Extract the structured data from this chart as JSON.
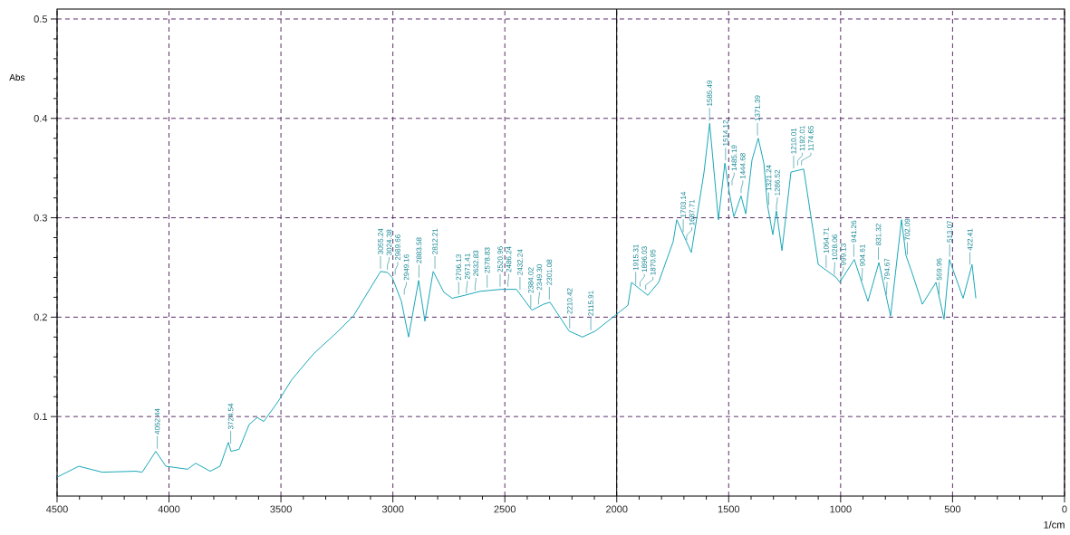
{
  "chart_data": {
    "type": "line",
    "xlabel": "1/cm",
    "ylabel": "Abs",
    "x": [
      4500,
      4403,
      4298,
      4148,
      4120,
      4059,
      4014,
      3917,
      3881,
      3816,
      3772,
      3735,
      3723,
      3687,
      3642,
      3606,
      3577,
      3513,
      3452,
      3355,
      3258,
      3177,
      3055,
      3024,
      3003,
      2962,
      2930,
      2885,
      2857,
      2820,
      2772,
      2735,
      2679,
      2610,
      2517,
      2448,
      2379,
      2327,
      2298,
      2213,
      2153,
      2096,
      2011,
      1950,
      1934,
      1861,
      1813,
      1748,
      1732,
      1667,
      1610,
      1585,
      1546,
      1517,
      1497,
      1477,
      1445,
      1424,
      1396,
      1368,
      1343,
      1327,
      1303,
      1287,
      1262,
      1222,
      1165,
      1100,
      1020,
      1004,
      939,
      878,
      829,
      777,
      728,
      708,
      680,
      635,
      574,
      538,
      514,
      453,
      413,
      396
    ],
    "series": [
      {
        "color": "#1aa8b8",
        "values": [
          0.039,
          0.05,
          0.044,
          0.045,
          0.044,
          0.065,
          0.05,
          0.047,
          0.053,
          0.045,
          0.05,
          0.074,
          0.065,
          0.067,
          0.092,
          0.099,
          0.095,
          0.115,
          0.137,
          0.163,
          0.183,
          0.201,
          0.246,
          0.245,
          0.24,
          0.216,
          0.18,
          0.237,
          0.196,
          0.246,
          0.225,
          0.219,
          0.222,
          0.226,
          0.228,
          0.228,
          0.207,
          0.213,
          0.215,
          0.186,
          0.18,
          0.186,
          0.201,
          0.212,
          0.235,
          0.222,
          0.235,
          0.276,
          0.298,
          0.265,
          0.346,
          0.395,
          0.298,
          0.355,
          0.325,
          0.301,
          0.322,
          0.304,
          0.358,
          0.38,
          0.355,
          0.313,
          0.283,
          0.307,
          0.267,
          0.346,
          0.349,
          0.253,
          0.24,
          0.235,
          0.258,
          0.216,
          0.255,
          0.201,
          0.298,
          0.262,
          0.244,
          0.213,
          0.235,
          0.198,
          0.258,
          0.219,
          0.253,
          0.219
        ]
      }
    ],
    "xlim": [
      4500,
      0
    ],
    "ylim": [
      0.02,
      0.51
    ],
    "xticks": [
      4500,
      4000,
      3500,
      3000,
      2500,
      2000,
      1500,
      1000,
      500,
      0
    ],
    "yticks": [
      0.1,
      0.2,
      0.3,
      0.4,
      0.5
    ],
    "grid": true,
    "marker": "none",
    "line_style": "solid",
    "ref_lines": [
      {
        "axis": "x",
        "value": 2000,
        "color": "#000000"
      }
    ],
    "annotations": [
      {
        "text": "4052.44",
        "x": 4052.44,
        "y": 0.065
      },
      {
        "text": "3724.54",
        "x": 3724.54,
        "y": 0.07
      },
      {
        "text": "3055.24",
        "x": 3055.24,
        "y": 0.246
      },
      {
        "text": "3024.38",
        "x": 3024.38,
        "y": 0.245
      },
      {
        "text": "2989.66",
        "x": 2989.66,
        "y": 0.24
      },
      {
        "text": "2949.16",
        "x": 2949.16,
        "y": 0.22
      },
      {
        "text": "2883.58",
        "x": 2883.58,
        "y": 0.237
      },
      {
        "text": "2812.21",
        "x": 2812.21,
        "y": 0.246
      },
      {
        "text": "2706.13",
        "x": 2706.13,
        "y": 0.22
      },
      {
        "text": "2671.41",
        "x": 2671.41,
        "y": 0.221
      },
      {
        "text": "2632.83",
        "x": 2632.83,
        "y": 0.224
      },
      {
        "text": "2578.83",
        "x": 2578.83,
        "y": 0.227
      },
      {
        "text": "2520.96",
        "x": 2520.96,
        "y": 0.228
      },
      {
        "text": "2486.24",
        "x": 2486.24,
        "y": 0.228
      },
      {
        "text": "2432.24",
        "x": 2432.24,
        "y": 0.225
      },
      {
        "text": "2384.02",
        "x": 2384.02,
        "y": 0.207
      },
      {
        "text": "2349.30",
        "x": 2349.3,
        "y": 0.21
      },
      {
        "text": "2301.08",
        "x": 2301.08,
        "y": 0.215
      },
      {
        "text": "2210.42",
        "x": 2210.42,
        "y": 0.186
      },
      {
        "text": "2115.91",
        "x": 2115.91,
        "y": 0.184
      },
      {
        "text": "1915.31",
        "x": 1915.31,
        "y": 0.23
      },
      {
        "text": "1896.03",
        "x": 1896.03,
        "y": 0.228
      },
      {
        "text": "1870.95",
        "x": 1870.95,
        "y": 0.225
      },
      {
        "text": "1703.14",
        "x": 1703.14,
        "y": 0.283
      },
      {
        "text": "1687.71",
        "x": 1687.71,
        "y": 0.275
      },
      {
        "text": "1585.49",
        "x": 1585.49,
        "y": 0.395
      },
      {
        "text": "1514.12",
        "x": 1514.12,
        "y": 0.355
      },
      {
        "text": "1485.19",
        "x": 1485.19,
        "y": 0.33
      },
      {
        "text": "1444.68",
        "x": 1444.68,
        "y": 0.322
      },
      {
        "text": "1371.39",
        "x": 1371.39,
        "y": 0.38
      },
      {
        "text": "1321.24",
        "x": 1321.24,
        "y": 0.31
      },
      {
        "text": "1286.52",
        "x": 1286.52,
        "y": 0.305
      },
      {
        "text": "1210.01",
        "x": 1210.01,
        "y": 0.347
      },
      {
        "text": "1192.01",
        "x": 1192.01,
        "y": 0.35
      },
      {
        "text": "1174.65",
        "x": 1174.65,
        "y": 0.35
      },
      {
        "text": "1064.71",
        "x": 1064.71,
        "y": 0.247
      },
      {
        "text": "1028.06",
        "x": 1028.06,
        "y": 0.24
      },
      {
        "text": "999.13",
        "x": 999.13,
        "y": 0.235
      },
      {
        "text": "941.26",
        "x": 941.26,
        "y": 0.258
      },
      {
        "text": "904.61",
        "x": 904.61,
        "y": 0.234
      },
      {
        "text": "831.32",
        "x": 831.32,
        "y": 0.255
      },
      {
        "text": "794.67",
        "x": 794.67,
        "y": 0.22
      },
      {
        "text": "702.09",
        "x": 702.09,
        "y": 0.26
      },
      {
        "text": "559.96",
        "x": 559.96,
        "y": 0.22
      },
      {
        "text": "513.07",
        "x": 513.07,
        "y": 0.258
      },
      {
        "text": "422.41",
        "x": 422.41,
        "y": 0.25
      }
    ]
  }
}
